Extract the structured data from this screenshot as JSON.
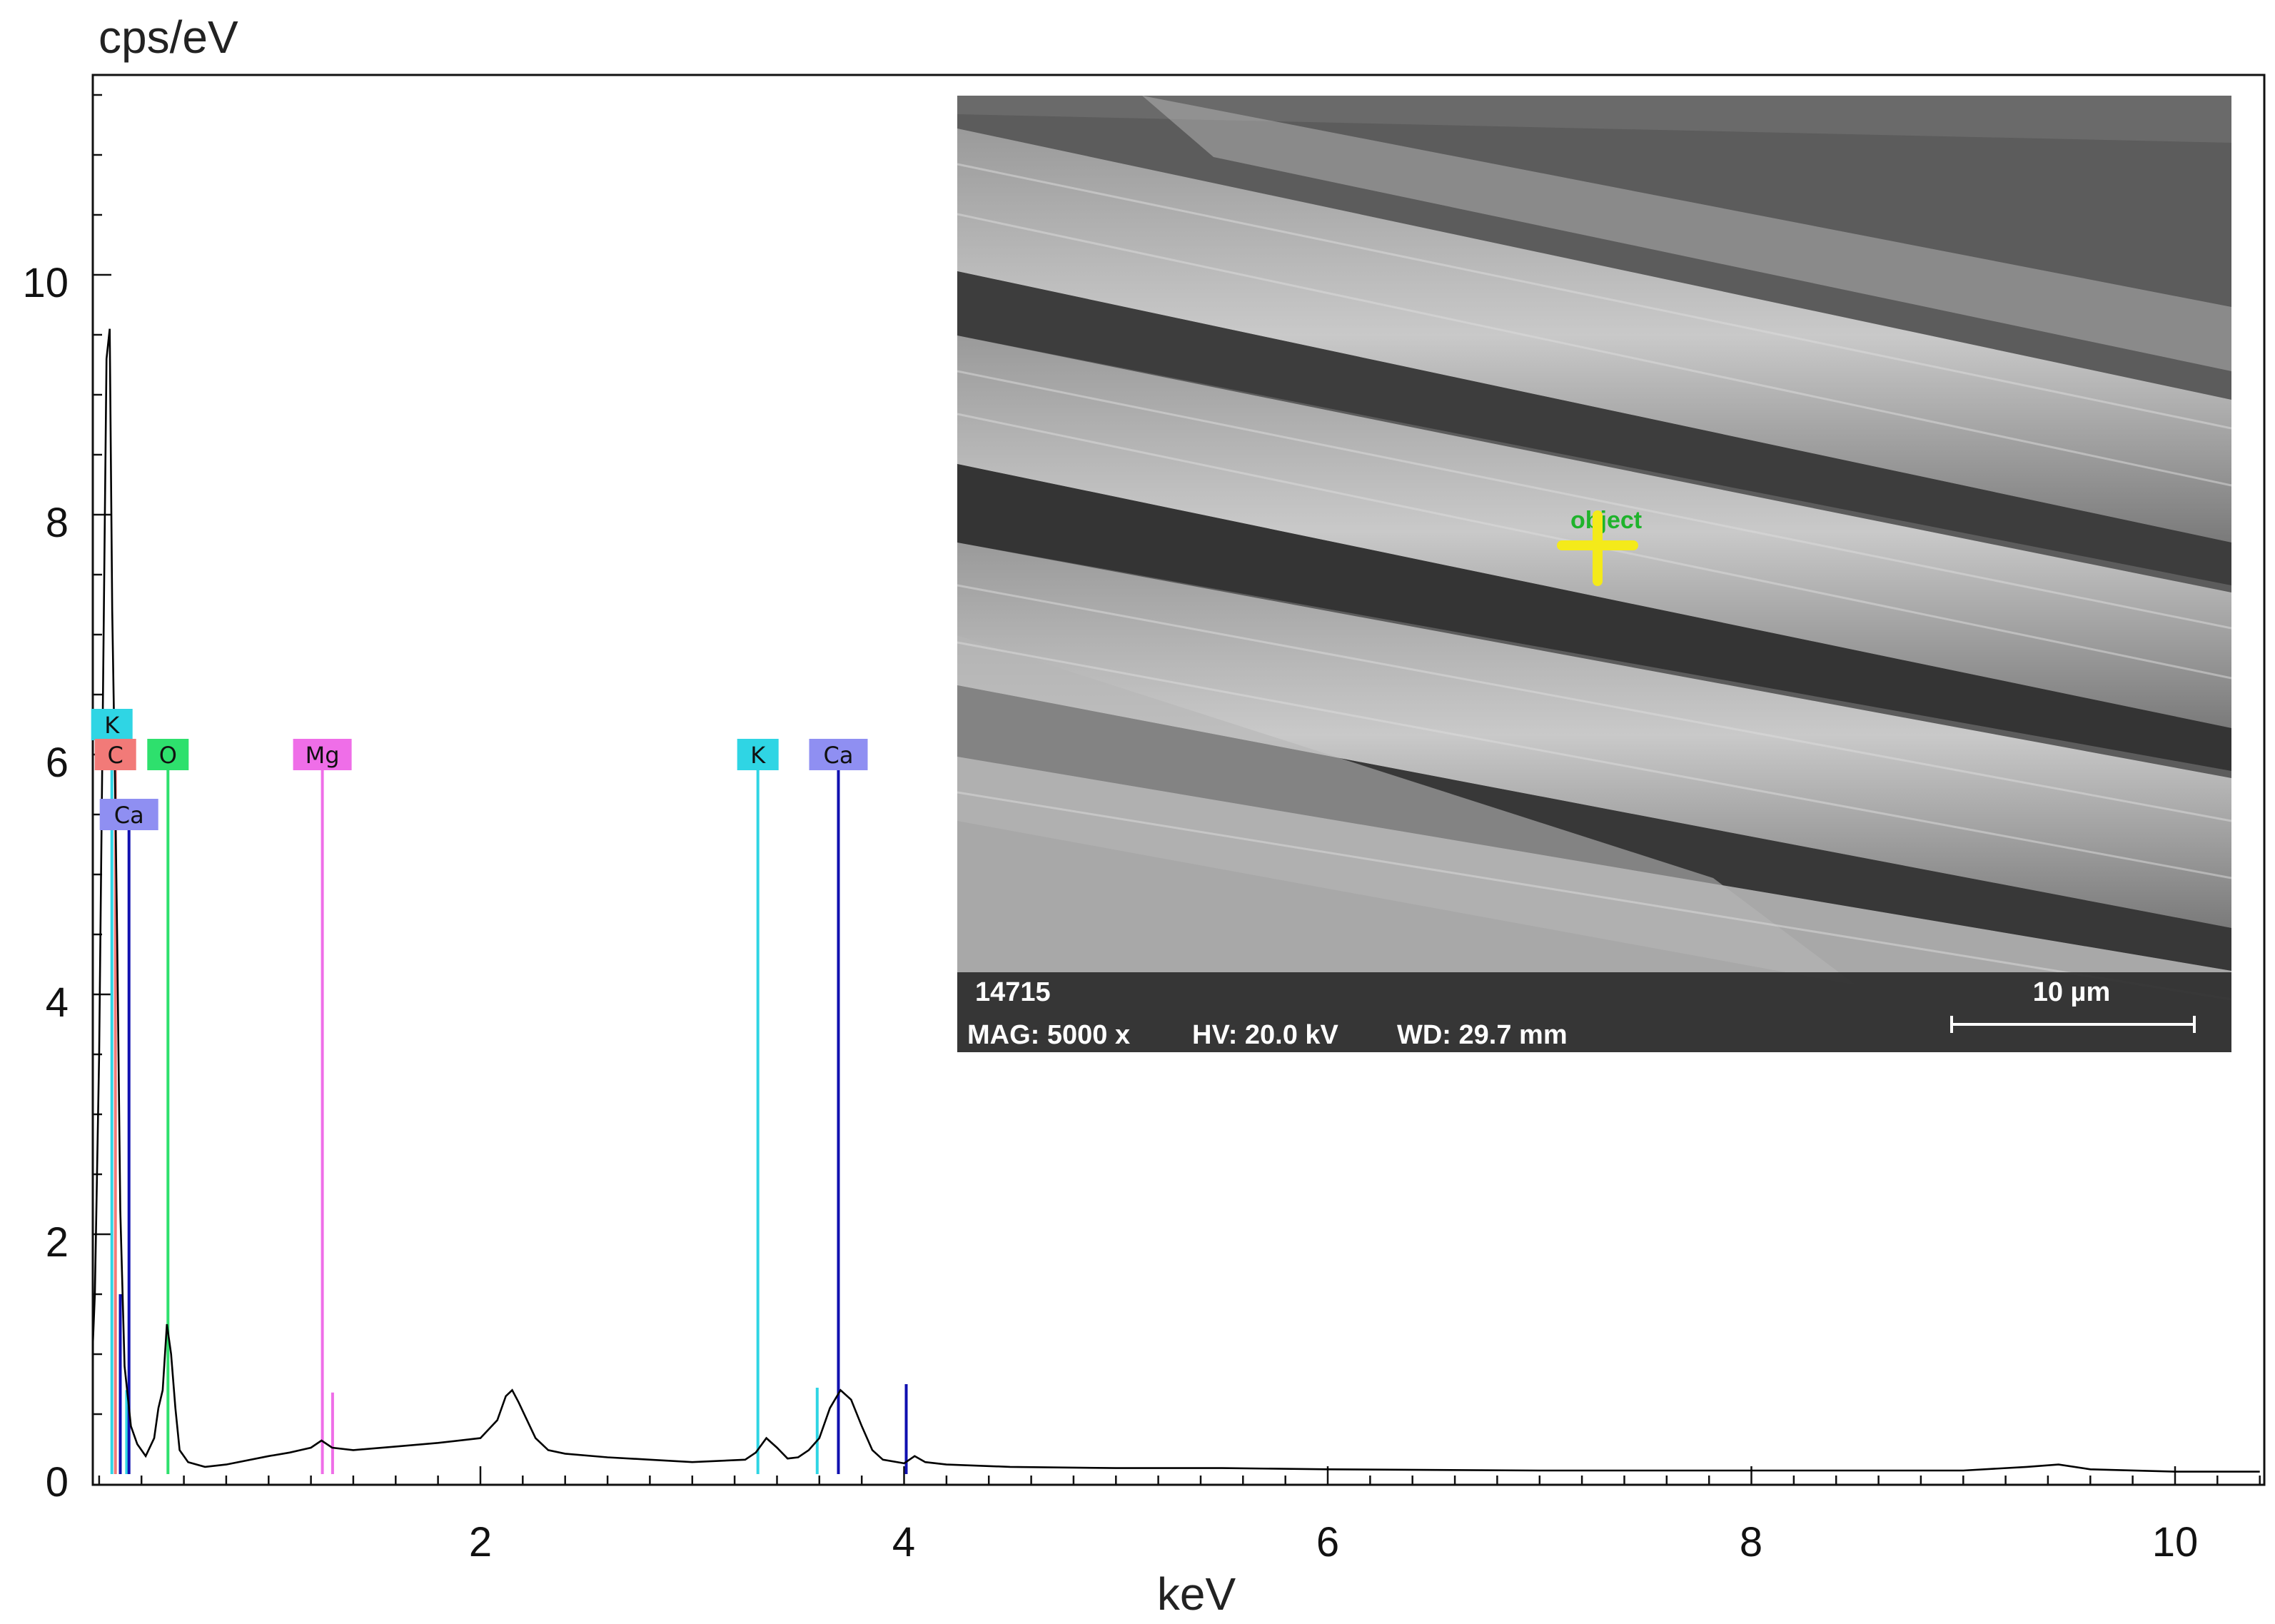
{
  "chart_data": {
    "type": "line",
    "title": "",
    "ylabel": "cps/eV",
    "xlabel": "keV",
    "xlim": [
      0.15,
      10.4
    ],
    "ylim": [
      0,
      12
    ],
    "xticks": [
      2,
      4,
      6,
      8,
      10
    ],
    "xtick_labels": [
      "2",
      "4",
      "6",
      "8",
      "10"
    ],
    "yticks": [
      0,
      2,
      4,
      6,
      8,
      10
    ],
    "ytick_labels": [
      "0",
      "2",
      "4",
      "6",
      "8",
      "10"
    ],
    "grid": false,
    "series": [
      {
        "x": [
          0.15,
          0.18,
          0.2,
          0.22,
          0.235,
          0.25,
          0.262,
          0.275,
          0.285,
          0.3,
          0.32,
          0.35,
          0.38,
          0.42,
          0.46,
          0.48,
          0.5,
          0.52,
          0.54,
          0.56,
          0.58,
          0.62,
          0.7,
          0.8,
          1.0,
          1.1,
          1.2,
          1.25,
          1.3,
          1.4,
          1.6,
          1.8,
          2.0,
          2.08,
          2.12,
          2.15,
          2.18,
          2.22,
          2.26,
          2.32,
          2.4,
          2.6,
          2.8,
          3.0,
          3.25,
          3.3,
          3.35,
          3.4,
          3.45,
          3.5,
          3.55,
          3.6,
          3.65,
          3.7,
          3.75,
          3.8,
          3.85,
          3.9,
          4.0,
          4.05,
          4.1,
          4.2,
          4.5,
          5.0,
          5.5,
          6.0,
          7.0,
          8.0,
          9.0,
          9.3,
          9.45,
          9.6,
          10.0,
          10.4
        ],
        "y": [
          0.2,
          1.5,
          3.5,
          6.8,
          9.3,
          9.55,
          7.2,
          5.8,
          4.5,
          2.2,
          0.9,
          0.4,
          0.25,
          0.15,
          0.3,
          0.55,
          0.7,
          1.25,
          1.0,
          0.55,
          0.2,
          0.1,
          0.06,
          0.08,
          0.15,
          0.18,
          0.22,
          0.28,
          0.22,
          0.2,
          0.23,
          0.26,
          0.3,
          0.45,
          0.65,
          0.7,
          0.6,
          0.45,
          0.3,
          0.2,
          0.17,
          0.14,
          0.12,
          0.1,
          0.12,
          0.18,
          0.3,
          0.22,
          0.13,
          0.14,
          0.2,
          0.3,
          0.55,
          0.7,
          0.62,
          0.4,
          0.2,
          0.12,
          0.09,
          0.15,
          0.1,
          0.08,
          0.06,
          0.05,
          0.05,
          0.04,
          0.03,
          0.03,
          0.03,
          0.06,
          0.08,
          0.04,
          0.02,
          0.02
        ]
      }
    ],
    "markers": [
      {
        "label": "K",
        "color": "#2fd5e4",
        "lines": [
          {
            "x": 0.26,
            "y": 6.25
          },
          {
            "x": 0.33,
            "y": 0.7
          },
          {
            "x": 3.31,
            "y": 6.0
          },
          {
            "x": 3.59,
            "y": 0.72
          }
        ]
      },
      {
        "label": "C",
        "color": "#f27a78",
        "lines": [
          {
            "x": 0.277,
            "y": 6.0
          }
        ]
      },
      {
        "label": "O",
        "color": "#2ee06d",
        "lines": [
          {
            "x": 0.525,
            "y": 6.0
          }
        ]
      },
      {
        "label": "Mg",
        "color": "#ef6ee8",
        "lines": [
          {
            "x": 1.254,
            "y": 6.0
          },
          {
            "x": 1.302,
            "y": 0.68
          }
        ]
      },
      {
        "label": "Ca",
        "color": "#8f8ff2",
        "line_color": "#1010b0",
        "lines": [
          {
            "x": 0.341,
            "y": 5.5
          },
          {
            "x": 0.3,
            "y": 1.5
          },
          {
            "x": 3.69,
            "y": 6.0
          },
          {
            "x": 4.01,
            "y": 0.75
          }
        ]
      }
    ],
    "tags": [
      {
        "label": "K",
        "x": 0.26,
        "y": 6.25,
        "color": "#2fd5e4"
      },
      {
        "label": "C",
        "x": 0.277,
        "y": 6.0,
        "color": "#f27a78"
      },
      {
        "label": "O",
        "x": 0.525,
        "y": 6.0,
        "color": "#2ee06d"
      },
      {
        "label": "Mg",
        "x": 1.254,
        "y": 6.0,
        "color": "#ef6ee8"
      },
      {
        "label": "K",
        "x": 3.31,
        "y": 6.0,
        "color": "#2fd5e4"
      },
      {
        "label": "Ca",
        "x": 3.69,
        "y": 6.0,
        "color": "#8f8ff2"
      },
      {
        "label": "Ca",
        "x": 0.341,
        "y": 5.5,
        "color": "#8f8ff2"
      }
    ]
  },
  "inset": {
    "id_label": "14715",
    "mag": "MAG: 5000 x",
    "hv": "HV: 20.0 kV",
    "wd": "WD: 29.7 mm",
    "scale_label": "10 µm",
    "point_label": "object",
    "cross_color": "#f4ea1a"
  }
}
